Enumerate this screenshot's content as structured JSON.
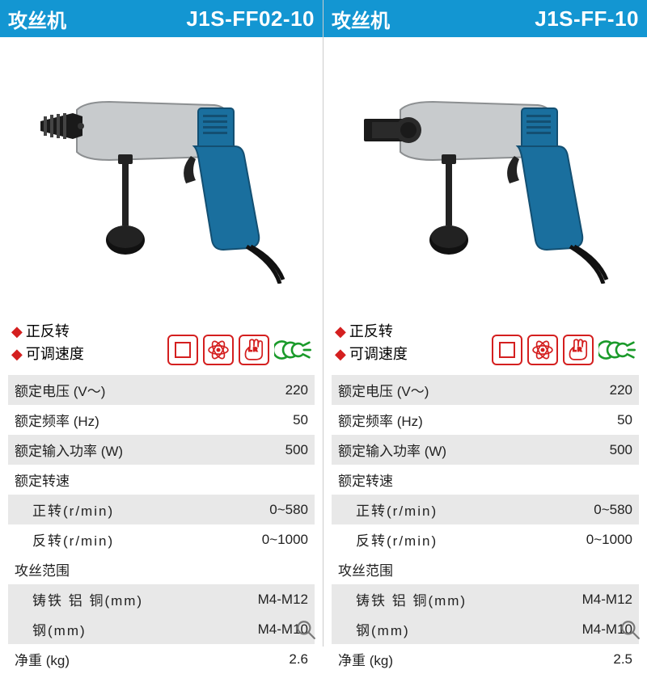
{
  "colors": {
    "header_bg": "#1396d2",
    "header_text": "#ffffff",
    "accent_red": "#d41f1f",
    "ccc_green": "#1a9a2a",
    "shade_bg": "#e8e8e8",
    "text": "#222222",
    "drill_blue": "#1a6f9e",
    "drill_blue_dark": "#134f72",
    "drill_grey": "#c8cbcd",
    "drill_grey_dark": "#8c8f91",
    "drill_black": "#1a1a1a"
  },
  "icons": {
    "ccc_label": "CCC"
  },
  "panels": [
    {
      "title": "攻丝机",
      "model": "J1S-FF02-10",
      "chuck_type": "keyed",
      "features": [
        "正反转",
        "可调速度"
      ],
      "specs": [
        {
          "label": "额定电压 (V～)",
          "value": "220",
          "shaded": true
        },
        {
          "label": "额定频率 (Hz)",
          "value": "50",
          "shaded": false
        },
        {
          "label": "额定输入功率 (W)",
          "value": "500",
          "shaded": true
        },
        {
          "label": "额定转速",
          "value": "",
          "shaded": false,
          "section": true
        },
        {
          "label": "正转(r/min)",
          "value": "0~580",
          "shaded": true,
          "indent": true
        },
        {
          "label": "反转(r/min)",
          "value": "0~1000",
          "shaded": false,
          "indent": true
        },
        {
          "label": "攻丝范围",
          "value": "",
          "shaded": false,
          "section": true
        },
        {
          "label": "铸铁  铝  铜(mm)",
          "value": "M4-M12",
          "shaded": true,
          "indent": true
        },
        {
          "label": "钢(mm)",
          "value": "M4-M10",
          "shaded": true,
          "indent": true
        },
        {
          "label": "净重 (kg)",
          "value": "2.6",
          "shaded": false
        }
      ]
    },
    {
      "title": "攻丝机",
      "model": "J1S-FF-10",
      "chuck_type": "collet",
      "features": [
        "正反转",
        "可调速度"
      ],
      "specs": [
        {
          "label": "额定电压 (V～)",
          "value": "220",
          "shaded": true
        },
        {
          "label": "额定频率 (Hz)",
          "value": "50",
          "shaded": false
        },
        {
          "label": "额定输入功率 (W)",
          "value": "500",
          "shaded": true
        },
        {
          "label": "额定转速",
          "value": "",
          "shaded": false,
          "section": true
        },
        {
          "label": "正转(r/min)",
          "value": "0~580",
          "shaded": true,
          "indent": true
        },
        {
          "label": "反转(r/min)",
          "value": "0~1000",
          "shaded": false,
          "indent": true
        },
        {
          "label": "攻丝范围",
          "value": "",
          "shaded": false,
          "section": true
        },
        {
          "label": "铸铁  铝  铜(mm)",
          "value": "M4-M12",
          "shaded": true,
          "indent": true
        },
        {
          "label": "钢(mm)",
          "value": "M4-M10",
          "shaded": true,
          "indent": true
        },
        {
          "label": "净重 (kg)",
          "value": "2.5",
          "shaded": false
        }
      ]
    }
  ]
}
